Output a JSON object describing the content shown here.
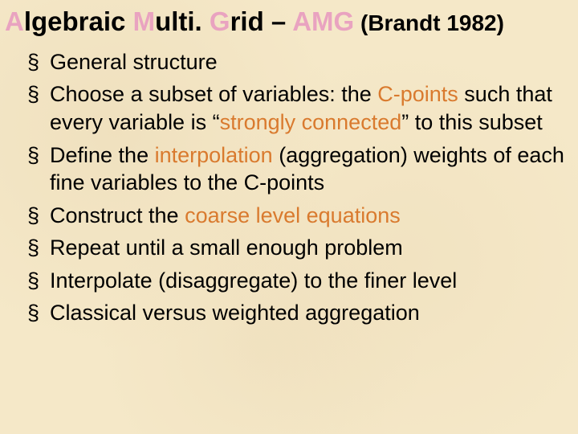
{
  "colors": {
    "background": "#f5e8c8",
    "title_highlight": "#e9a3c0",
    "body_highlight": "#d97a2e",
    "text": "#000000"
  },
  "typography": {
    "font_family": "Arial",
    "title_fontsize_pt": 25,
    "title_sub_fontsize_pt": 21,
    "body_fontsize_pt": 20,
    "bullet_glyph": "§"
  },
  "title": {
    "parts": {
      "a": "A",
      "lgebraic": "lgebraic ",
      "m": "M",
      "ulti": "ulti. ",
      "g": "G",
      "rid": "rid – ",
      "amg": "AMG",
      "sub": " (Brandt 1982)"
    }
  },
  "bullets": [
    {
      "runs": [
        {
          "t": "General structure"
        }
      ]
    },
    {
      "runs": [
        {
          "t": "Choose a subset of variables: the "
        },
        {
          "t": "C-points",
          "hl": true
        },
        {
          "t": " such that every variable is "
        },
        {
          "t": "“"
        },
        {
          "t": "strongly connected",
          "hl": true
        },
        {
          "t": "” to this subset"
        }
      ]
    },
    {
      "runs": [
        {
          "t": "Define the "
        },
        {
          "t": "interpolation",
          "hl": true
        },
        {
          "t": " (aggregation) weights of each fine variables to the C-points"
        }
      ]
    },
    {
      "runs": [
        {
          "t": "Construct the "
        },
        {
          "t": "coarse level equations",
          "hl": true
        }
      ]
    },
    {
      "runs": [
        {
          "t": "Repeat until a small enough problem"
        }
      ]
    },
    {
      "runs": [
        {
          "t": "Interpolate (disaggregate) to the finer level"
        }
      ]
    },
    {
      "runs": [
        {
          "t": "Classical versus weighted aggregation"
        }
      ]
    }
  ]
}
